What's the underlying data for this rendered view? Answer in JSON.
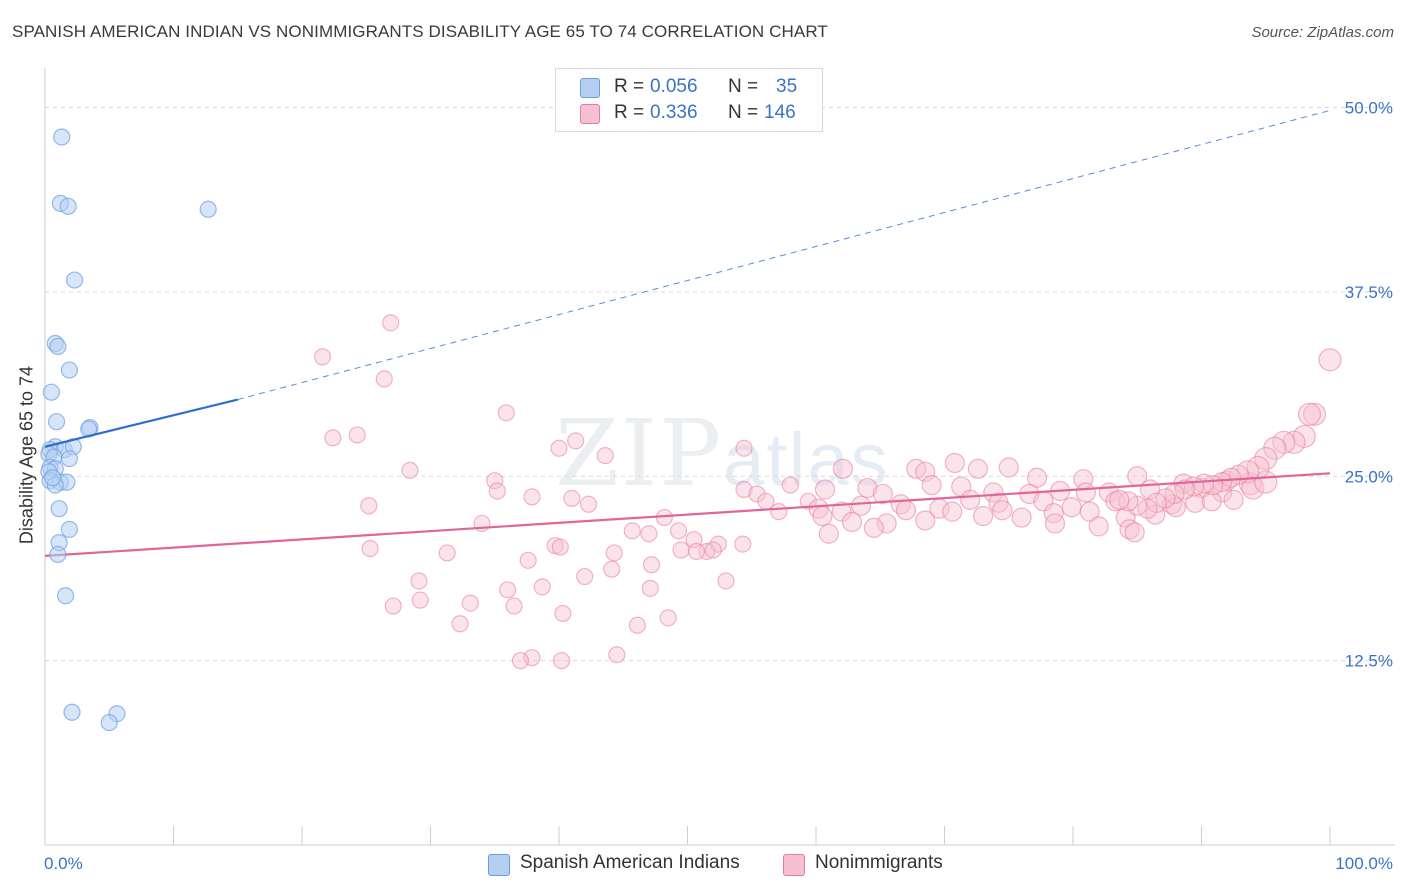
{
  "title": "SPANISH AMERICAN INDIAN VS NONIMMIGRANTS DISABILITY AGE 65 TO 74 CORRELATION CHART",
  "source": "Source: ZipAtlas.com",
  "watermark": {
    "main": "ZIP",
    "small": "atlas"
  },
  "colors": {
    "blue": "#6d9fe0",
    "blue_fill": "#b5cff3",
    "blue_line": "#2f6fca",
    "pink": "#e87aa0",
    "pink_fill": "#f7c0d2",
    "pink_line": "#e0659a",
    "tick_label": "#3b73c4",
    "grid": "#d8d8d8"
  },
  "legend": {
    "rows": [
      {
        "r_label": "R =",
        "r_value": "0.056",
        "n_label": "N =",
        "n_value": "35"
      },
      {
        "r_label": "R =",
        "r_value": "0.336",
        "n_label": "N =",
        "n_value": "146"
      }
    ]
  },
  "bottom_legend": {
    "series1": "Spanish American Indians",
    "series2": "Nonimmigrants"
  },
  "chart_data": {
    "type": "scatter",
    "title": "SPANISH AMERICAN INDIAN VS NONIMMIGRANTS DISABILITY AGE 65 TO 74 CORRELATION CHART",
    "xlabel": "",
    "ylabel": "Disability Age 65 to 74",
    "xlim": [
      0,
      100
    ],
    "ylim": [
      0,
      52
    ],
    "x_tick_labels": [
      "0.0%",
      "100.0%"
    ],
    "y_ticks": [
      12.5,
      25.0,
      37.5,
      50.0
    ],
    "y_tick_labels": [
      "12.5%",
      "25.0%",
      "37.5%",
      "50.0%"
    ],
    "series": [
      {
        "name": "Spanish American Indians",
        "r": 0.056,
        "n": 35,
        "trend": {
          "x0": 0,
          "y0": 27.0,
          "x1": 15,
          "y1": 30.2,
          "dashed_to_x": 100,
          "dashed_to_y": 49.8
        },
        "points": [
          [
            1.3,
            48.0
          ],
          [
            1.2,
            43.5
          ],
          [
            1.8,
            43.3
          ],
          [
            12.7,
            43.1
          ],
          [
            2.3,
            38.3
          ],
          [
            0.8,
            34.0
          ],
          [
            1.0,
            33.8
          ],
          [
            1.9,
            32.2
          ],
          [
            0.5,
            30.7
          ],
          [
            0.9,
            28.7
          ],
          [
            3.5,
            28.3
          ],
          [
            3.4,
            28.2
          ],
          [
            0.8,
            27.0
          ],
          [
            0.4,
            26.8
          ],
          [
            1.5,
            26.8
          ],
          [
            2.2,
            27.0
          ],
          [
            0.3,
            26.5
          ],
          [
            0.7,
            26.3
          ],
          [
            1.9,
            26.2
          ],
          [
            0.4,
            25.6
          ],
          [
            0.8,
            25.5
          ],
          [
            0.3,
            25.3
          ],
          [
            0.4,
            24.7
          ],
          [
            1.2,
            24.6
          ],
          [
            1.7,
            24.6
          ],
          [
            0.8,
            24.4
          ],
          [
            1.1,
            22.8
          ],
          [
            1.9,
            21.4
          ],
          [
            1.1,
            20.5
          ],
          [
            1.0,
            19.7
          ],
          [
            1.6,
            16.9
          ],
          [
            2.1,
            9.0
          ],
          [
            5.6,
            8.9
          ],
          [
            5.0,
            8.3
          ],
          [
            0.6,
            24.9
          ]
        ]
      },
      {
        "name": "Nonimmigrants",
        "r": 0.336,
        "n": 146,
        "trend": {
          "x0": 0,
          "y0": 19.6,
          "x1": 100,
          "y1": 25.2
        },
        "points": [
          [
            26.9,
            35.4
          ],
          [
            21.6,
            33.1
          ],
          [
            26.4,
            31.6
          ],
          [
            35.9,
            29.3
          ],
          [
            24.3,
            27.8
          ],
          [
            22.4,
            27.6
          ],
          [
            41.3,
            27.4
          ],
          [
            40.0,
            26.9
          ],
          [
            54.4,
            26.9
          ],
          [
            43.6,
            26.4
          ],
          [
            28.4,
            25.4
          ],
          [
            70.8,
            25.9
          ],
          [
            72.6,
            25.5
          ],
          [
            62.1,
            25.5
          ],
          [
            67.8,
            25.5
          ],
          [
            68.5,
            25.3
          ],
          [
            75.0,
            25.6
          ],
          [
            77.2,
            24.9
          ],
          [
            80.8,
            24.8
          ],
          [
            85.0,
            25.0
          ],
          [
            88.6,
            24.5
          ],
          [
            92.0,
            24.7
          ],
          [
            93.8,
            24.5
          ],
          [
            35.0,
            24.7
          ],
          [
            35.2,
            24.0
          ],
          [
            54.4,
            24.1
          ],
          [
            55.4,
            23.8
          ],
          [
            58.0,
            24.4
          ],
          [
            60.7,
            24.1
          ],
          [
            64.0,
            24.2
          ],
          [
            65.2,
            23.8
          ],
          [
            69.0,
            24.4
          ],
          [
            71.3,
            24.3
          ],
          [
            73.8,
            23.9
          ],
          [
            76.6,
            23.8
          ],
          [
            79.0,
            24.0
          ],
          [
            81.0,
            23.9
          ],
          [
            82.8,
            23.9
          ],
          [
            86.0,
            24.1
          ],
          [
            90.0,
            24.2
          ],
          [
            91.6,
            23.9
          ],
          [
            94.0,
            24.2
          ],
          [
            95.0,
            24.6
          ],
          [
            37.9,
            23.6
          ],
          [
            41.0,
            23.5
          ],
          [
            42.3,
            23.1
          ],
          [
            56.1,
            23.3
          ],
          [
            59.4,
            23.3
          ],
          [
            63.5,
            23.0
          ],
          [
            66.6,
            23.1
          ],
          [
            69.6,
            22.8
          ],
          [
            72.0,
            23.4
          ],
          [
            74.2,
            23.2
          ],
          [
            77.7,
            23.3
          ],
          [
            79.9,
            22.9
          ],
          [
            83.3,
            23.3
          ],
          [
            87.7,
            23.1
          ],
          [
            89.5,
            23.2
          ],
          [
            25.2,
            23.0
          ],
          [
            57.1,
            22.6
          ],
          [
            60.2,
            22.8
          ],
          [
            62.0,
            22.6
          ],
          [
            67.0,
            22.7
          ],
          [
            70.6,
            22.6
          ],
          [
            74.5,
            22.7
          ],
          [
            78.5,
            22.5
          ],
          [
            81.3,
            22.6
          ],
          [
            84.1,
            22.2
          ],
          [
            86.4,
            22.4
          ],
          [
            88.0,
            22.9
          ],
          [
            90.8,
            23.3
          ],
          [
            92.5,
            23.4
          ],
          [
            48.2,
            22.2
          ],
          [
            60.5,
            22.3
          ],
          [
            62.8,
            21.9
          ],
          [
            65.5,
            21.8
          ],
          [
            68.5,
            22.0
          ],
          [
            73.0,
            22.3
          ],
          [
            76.0,
            22.2
          ],
          [
            78.6,
            21.8
          ],
          [
            82.0,
            21.6
          ],
          [
            84.4,
            21.4
          ],
          [
            34.0,
            21.8
          ],
          [
            45.7,
            21.3
          ],
          [
            47.0,
            21.1
          ],
          [
            49.3,
            21.3
          ],
          [
            61.0,
            21.1
          ],
          [
            64.5,
            21.5
          ],
          [
            84.8,
            21.2
          ],
          [
            50.5,
            20.7
          ],
          [
            52.4,
            20.4
          ],
          [
            54.3,
            20.4
          ],
          [
            39.7,
            20.3
          ],
          [
            40.1,
            20.2
          ],
          [
            49.5,
            20.0
          ],
          [
            51.5,
            19.9
          ],
          [
            50.7,
            19.9
          ],
          [
            52.0,
            20.0
          ],
          [
            25.3,
            20.1
          ],
          [
            31.3,
            19.8
          ],
          [
            44.3,
            19.8
          ],
          [
            37.6,
            19.3
          ],
          [
            44.1,
            18.7
          ],
          [
            47.2,
            19.0
          ],
          [
            42.0,
            18.2
          ],
          [
            29.1,
            17.9
          ],
          [
            53.0,
            17.9
          ],
          [
            38.7,
            17.5
          ],
          [
            47.1,
            17.4
          ],
          [
            36.0,
            17.3
          ],
          [
            29.2,
            16.6
          ],
          [
            33.1,
            16.4
          ],
          [
            27.1,
            16.2
          ],
          [
            36.5,
            16.2
          ],
          [
            40.3,
            15.7
          ],
          [
            32.3,
            15.0
          ],
          [
            48.5,
            15.4
          ],
          [
            46.1,
            14.9
          ],
          [
            44.5,
            12.9
          ],
          [
            37.9,
            12.7
          ],
          [
            40.2,
            12.5
          ],
          [
            37.0,
            12.5
          ],
          [
            100.0,
            32.9
          ],
          [
            98.8,
            29.2
          ],
          [
            98.4,
            29.2
          ],
          [
            98.0,
            27.7
          ],
          [
            97.2,
            27.3
          ],
          [
            96.4,
            27.3
          ],
          [
            95.7,
            26.9
          ],
          [
            95.0,
            26.2
          ],
          [
            94.4,
            25.6
          ],
          [
            93.6,
            25.3
          ],
          [
            92.9,
            25.1
          ],
          [
            92.3,
            24.9
          ],
          [
            91.6,
            24.6
          ],
          [
            90.9,
            24.4
          ],
          [
            90.2,
            24.5
          ],
          [
            89.4,
            24.3
          ],
          [
            88.7,
            24.1
          ],
          [
            87.9,
            23.8
          ],
          [
            87.2,
            23.5
          ],
          [
            86.5,
            23.2
          ],
          [
            85.8,
            22.8
          ],
          [
            85.0,
            23.0
          ],
          [
            84.3,
            23.3
          ],
          [
            83.6,
            23.4
          ]
        ]
      }
    ]
  }
}
